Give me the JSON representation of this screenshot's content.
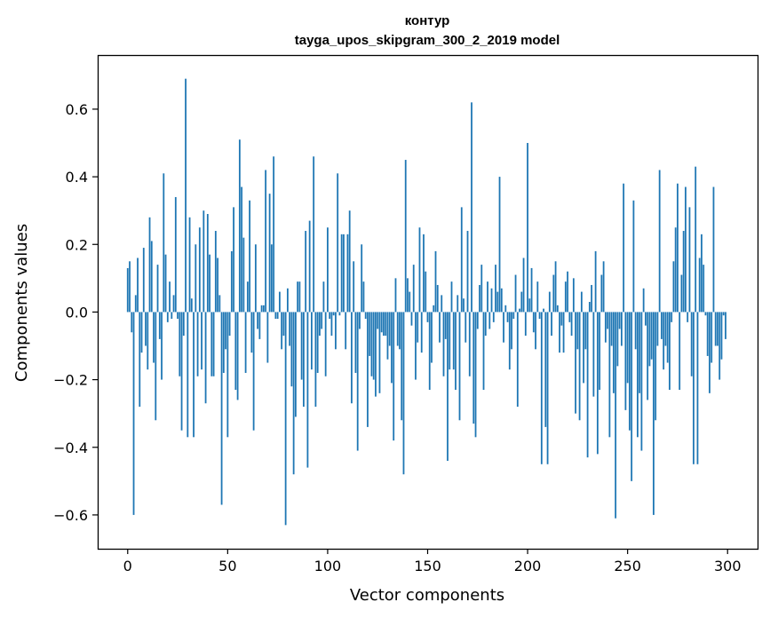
{
  "chart_data": {
    "type": "bar",
    "title": "контур",
    "subtitle": "tayga_upos_skipgram_300_2_2019 model",
    "xlabel": "Vector components",
    "ylabel": "Components values",
    "xlim": [
      -15,
      315
    ],
    "ylim": [
      -0.7,
      0.76
    ],
    "xticks": [
      0,
      50,
      100,
      150,
      200,
      250,
      300
    ],
    "yticks": [
      -0.6,
      -0.4,
      -0.2,
      0.0,
      0.2,
      0.4,
      0.6
    ],
    "ytick_labels": [
      "−0.6",
      "−0.4",
      "−0.2",
      "0.0",
      "0.2",
      "0.4",
      "0.6"
    ],
    "bar_color": "#1f77b4",
    "x": "0..299",
    "values": [
      0.13,
      0.15,
      -0.06,
      -0.6,
      0.05,
      0.16,
      -0.28,
      -0.12,
      0.19,
      -0.1,
      -0.17,
      0.28,
      0.21,
      -0.15,
      -0.32,
      0.14,
      -0.08,
      -0.2,
      0.41,
      0.17,
      -0.03,
      0.09,
      -0.02,
      0.05,
      0.34,
      -0.02,
      -0.19,
      -0.35,
      -0.07,
      0.69,
      -0.37,
      0.28,
      0.04,
      -0.37,
      0.2,
      -0.19,
      0.25,
      -0.17,
      0.3,
      -0.27,
      0.29,
      0.17,
      -0.19,
      -0.19,
      0.24,
      0.16,
      0.05,
      -0.57,
      -0.18,
      -0.11,
      -0.37,
      -0.07,
      0.18,
      0.31,
      -0.23,
      -0.26,
      0.51,
      0.37,
      0.22,
      -0.18,
      0.09,
      0.33,
      -0.12,
      -0.35,
      0.2,
      -0.05,
      -0.08,
      0.02,
      0.02,
      0.42,
      -0.15,
      0.35,
      0.2,
      0.46,
      -0.02,
      -0.02,
      0.06,
      -0.11,
      -0.07,
      -0.63,
      0.07,
      -0.1,
      -0.22,
      -0.48,
      -0.31,
      0.09,
      0.09,
      -0.2,
      -0.28,
      0.24,
      -0.46,
      0.27,
      -0.17,
      0.46,
      -0.28,
      -0.18,
      -0.07,
      -0.05,
      0.09,
      -0.19,
      0.25,
      -0.02,
      -0.07,
      -0.01,
      -0.11,
      0.41,
      -0.01,
      0.23,
      0.23,
      -0.11,
      0.23,
      0.3,
      -0.27,
      0.15,
      -0.18,
      -0.41,
      -0.05,
      0.2,
      0.09,
      -0.02,
      -0.34,
      -0.13,
      -0.19,
      -0.2,
      -0.25,
      -0.05,
      -0.24,
      -0.06,
      -0.07,
      -0.07,
      -0.14,
      -0.1,
      -0.21,
      -0.38,
      0.1,
      -0.1,
      -0.11,
      -0.32,
      -0.48,
      0.45,
      0.1,
      0.06,
      -0.04,
      0.14,
      -0.2,
      -0.09,
      0.25,
      -0.12,
      0.23,
      0.12,
      -0.03,
      -0.23,
      -0.15,
      0.02,
      0.18,
      0.08,
      -0.09,
      0.05,
      -0.19,
      -0.08,
      -0.44,
      -0.17,
      0.09,
      -0.17,
      -0.23,
      0.05,
      -0.32,
      0.31,
      0.04,
      -0.09,
      0.24,
      -0.19,
      0.62,
      -0.33,
      -0.37,
      -0.05,
      0.08,
      0.14,
      -0.23,
      -0.07,
      0.09,
      -0.05,
      0.07,
      -0.03,
      0.14,
      0.06,
      0.4,
      0.07,
      -0.09,
      0.02,
      -0.03,
      -0.17,
      -0.11,
      -0.02,
      0.11,
      -0.28,
      0.01,
      0.06,
      0.16,
      -0.07,
      0.5,
      0.04,
      0.13,
      -0.06,
      -0.11,
      0.09,
      -0.02,
      -0.45,
      0.01,
      -0.34,
      -0.45,
      0.06,
      -0.07,
      0.11,
      0.15,
      0.02,
      -0.12,
      -0.04,
      -0.12,
      0.09,
      0.12,
      -0.03,
      -0.07,
      0.1,
      -0.3,
      -0.11,
      -0.32,
      0.06,
      -0.21,
      -0.11,
      -0.43,
      0.03,
      0.08,
      -0.25,
      0.18,
      -0.42,
      -0.23,
      0.11,
      0.15,
      -0.09,
      -0.05,
      -0.37,
      -0.1,
      -0.24,
      -0.61,
      -0.16,
      -0.05,
      -0.1,
      0.38,
      -0.29,
      -0.21,
      -0.35,
      -0.5,
      0.33,
      -0.11,
      -0.37,
      -0.24,
      -0.41,
      0.07,
      -0.04,
      -0.26,
      -0.16,
      -0.14,
      -0.6,
      -0.32,
      -0.1,
      0.42,
      -0.08,
      -0.17,
      -0.1,
      -0.15,
      -0.23,
      -0.03,
      0.15,
      0.25,
      0.38,
      -0.23,
      0.11,
      0.24,
      0.37,
      -0.03,
      0.31,
      -0.19,
      -0.45,
      0.43,
      -0.45,
      0.16,
      0.23,
      0.14,
      -0.01,
      -0.13,
      -0.24,
      -0.15,
      0.37,
      -0.1,
      -0.1,
      -0.2,
      -0.14,
      -0.01,
      -0.08
    ]
  }
}
